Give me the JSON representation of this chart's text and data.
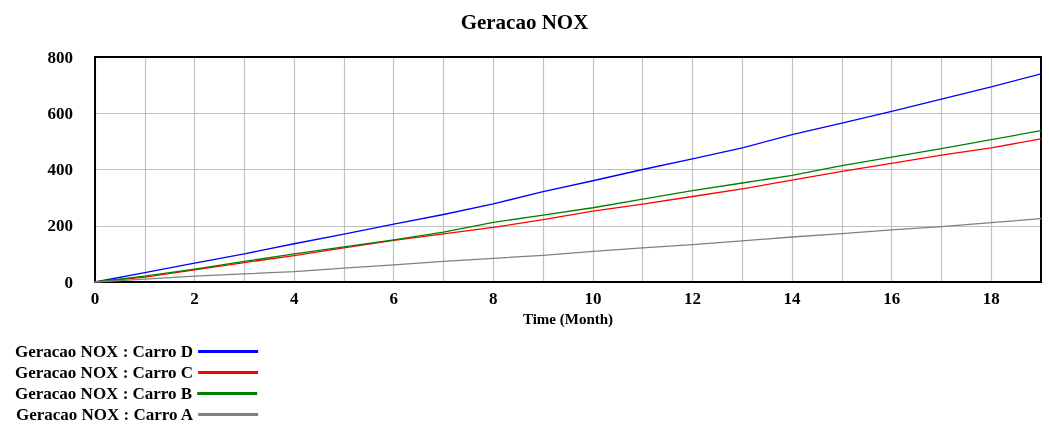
{
  "chart_data": {
    "type": "line",
    "title": "Geracao NOX",
    "xlabel": "Time (Month)",
    "x": [
      0,
      1,
      2,
      3,
      4,
      5,
      6,
      7,
      8,
      9,
      10,
      11,
      12,
      13,
      14,
      15,
      16,
      17,
      18,
      19
    ],
    "series": [
      {
        "name": "Geracao NOX : Carro D",
        "color": "#0000ff",
        "values": [
          0,
          33,
          67,
          100,
          136,
          170,
          206,
          240,
          278,
          321,
          360,
          400,
          438,
          477,
          524,
          565,
          607,
          650,
          694,
          740
        ]
      },
      {
        "name": "Geracao NOX : Carro C",
        "color": "#ff0000",
        "values": [
          0,
          17,
          43,
          69,
          94,
          121,
          148,
          171,
          194,
          222,
          252,
          277,
          304,
          331,
          362,
          393,
          422,
          451,
          477,
          509
        ]
      },
      {
        "name": "Geracao NOX : Carro B",
        "color": "#008000",
        "values": [
          0,
          21,
          46,
          73,
          100,
          125,
          150,
          177,
          212,
          238,
          264,
          295,
          325,
          352,
          379,
          414,
          444,
          474,
          506,
          538
        ]
      },
      {
        "name": "Geracao NOX : Carro A",
        "color": "#808080",
        "values": [
          0,
          10,
          21,
          29,
          37,
          49,
          61,
          73,
          84,
          95,
          109,
          121,
          133,
          146,
          160,
          172,
          185,
          197,
          211,
          225
        ]
      }
    ],
    "xlim": [
      0,
      19
    ],
    "xticks": [
      0,
      {
        "value": 1,
        "label": null
      },
      2,
      {
        "value": 3,
        "label": null
      },
      4,
      {
        "value": 5,
        "label": null
      },
      6,
      {
        "value": 7,
        "label": null
      },
      8,
      {
        "value": 9,
        "label": null
      },
      10,
      {
        "value": 11,
        "label": null
      },
      12,
      {
        "value": 13,
        "label": null
      },
      14,
      {
        "value": 15,
        "label": null
      },
      16,
      {
        "value": 17,
        "label": null
      },
      18
    ],
    "ylim": [
      0,
      800
    ],
    "yticks": [
      0,
      200,
      400,
      600,
      800
    ],
    "grid": true,
    "legend": "bottom",
    "marker": "none",
    "line_style": "solid"
  }
}
